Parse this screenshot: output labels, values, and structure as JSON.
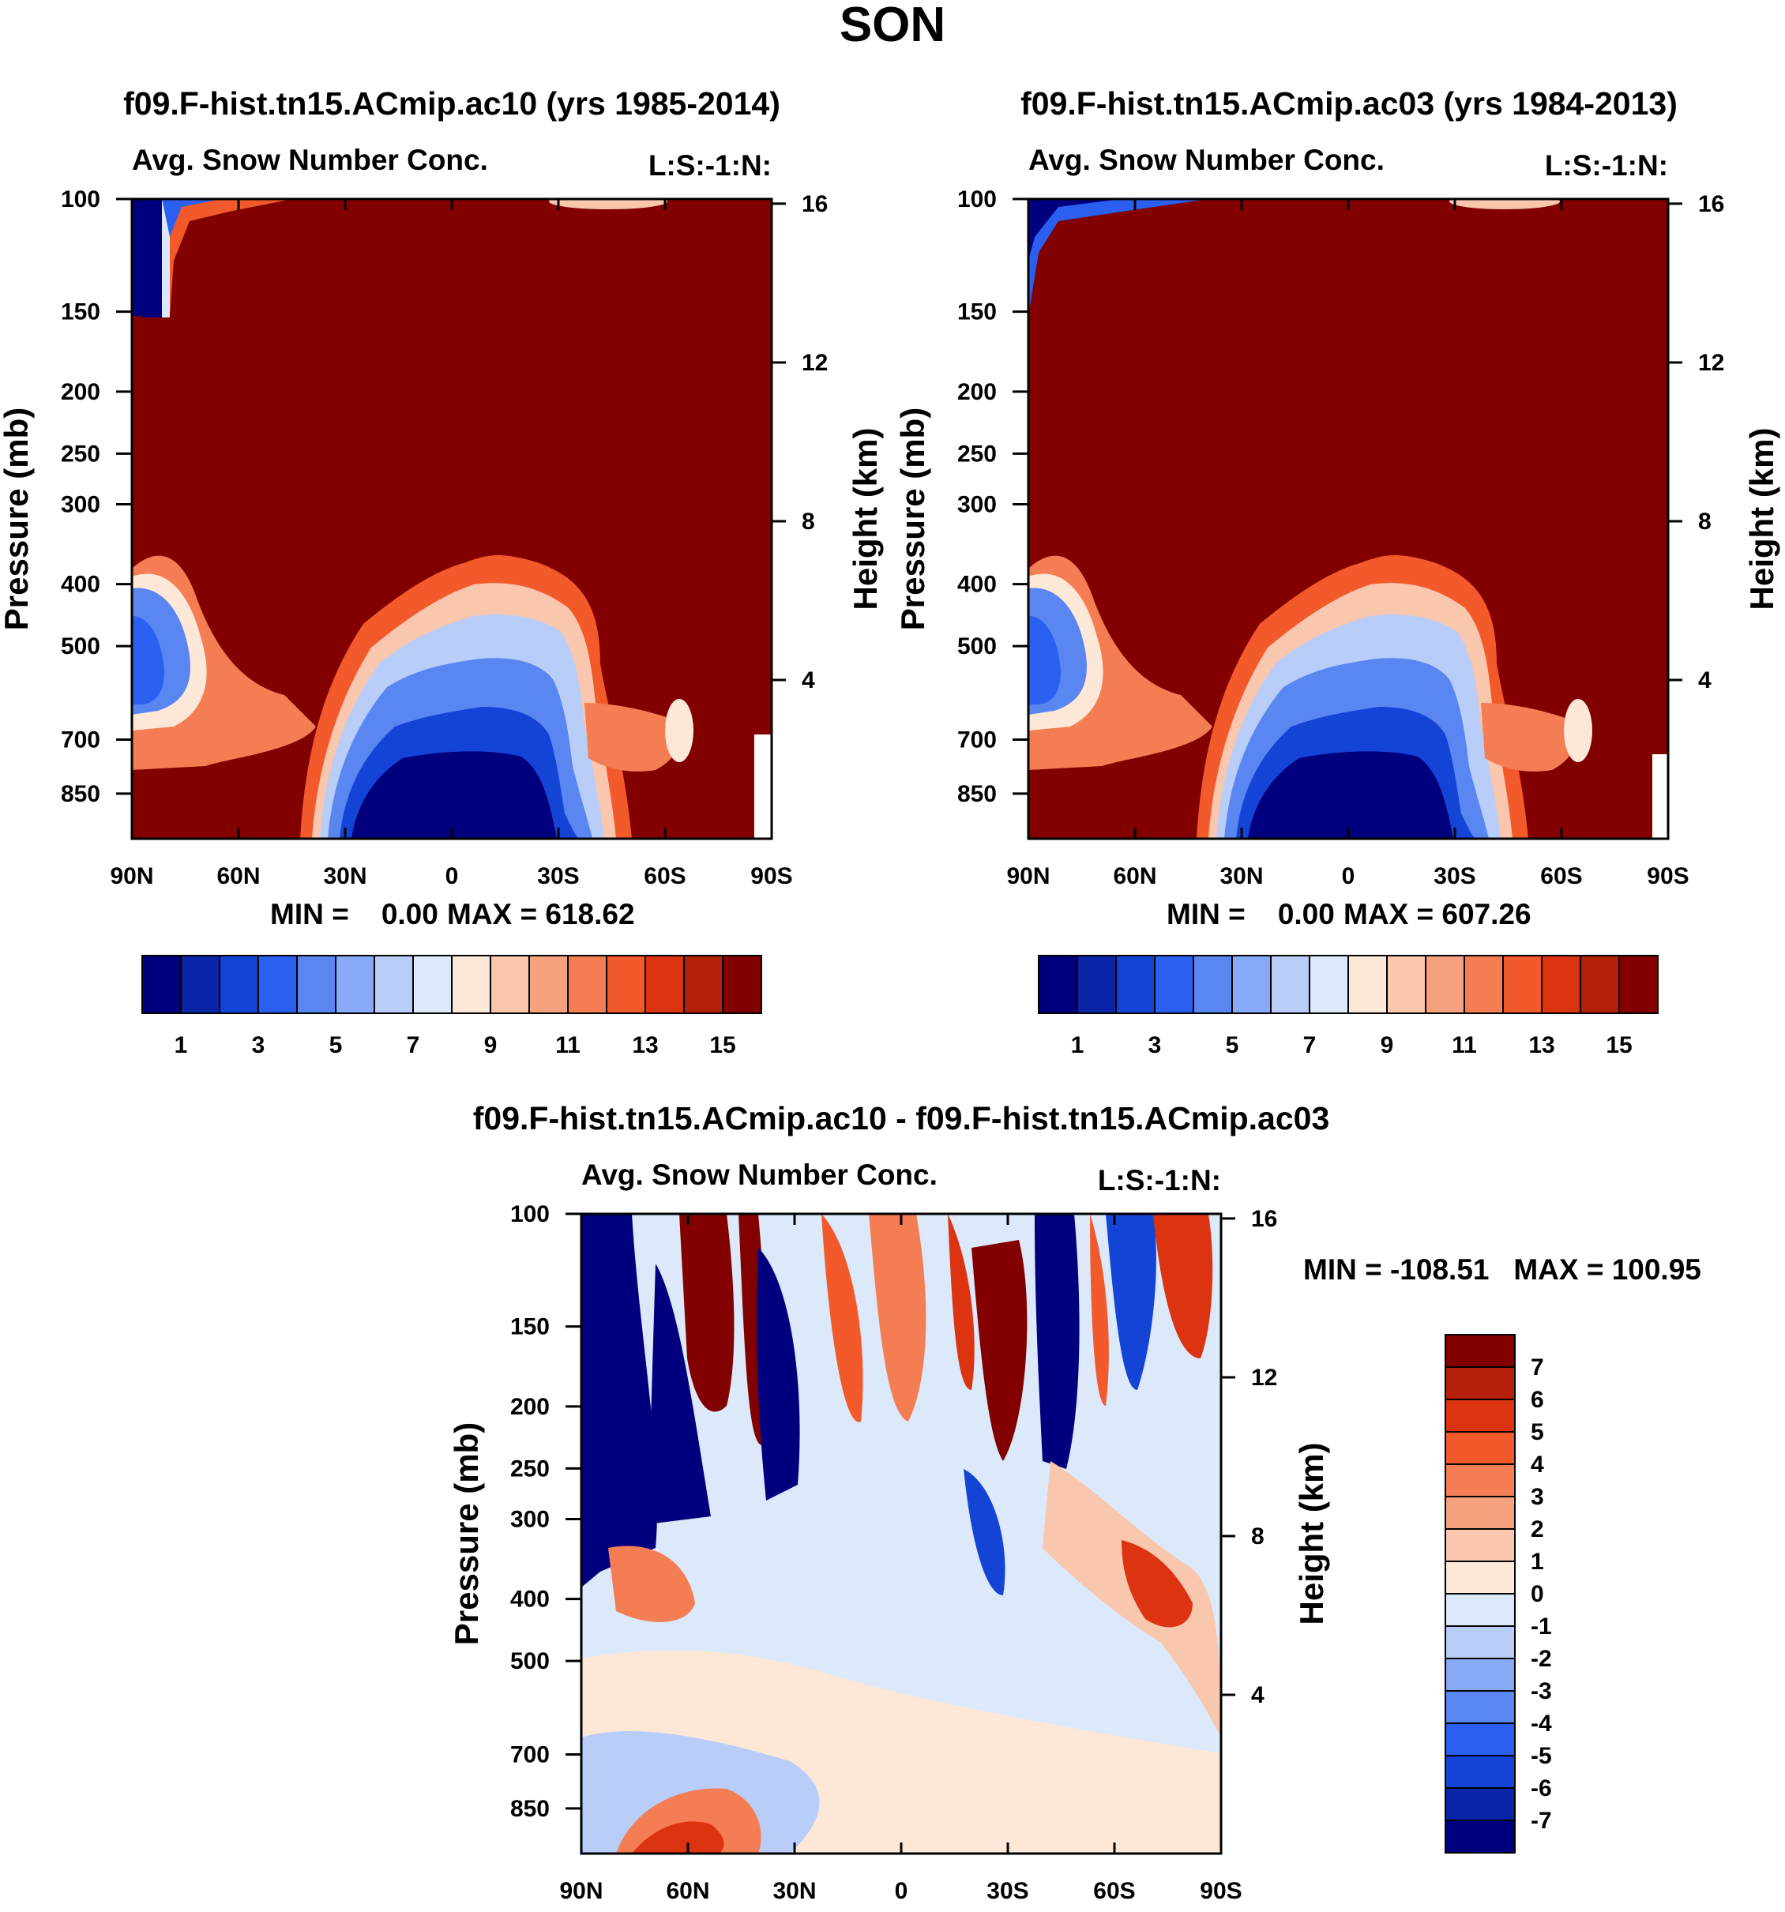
{
  "chart_data": [
    {
      "type": "heatmap",
      "id": "ac10",
      "title": "f09.F-hist.tn15.ACmip.ac10 (yrs 1985-2014)",
      "left_string": "Avg. Snow Number Conc.",
      "right_string": "L:S:-1:N:",
      "ylabel": "Pressure (mb)",
      "ylabel_right": "Height (km)",
      "x_ticks": [
        "90N",
        "60N",
        "30N",
        "0",
        "30S",
        "60S",
        "90S"
      ],
      "y_ticks": [
        "100",
        "150",
        "200",
        "250",
        "300",
        "400",
        "500",
        "700",
        "850"
      ],
      "y_ticks_right": [
        "16",
        "12",
        "8",
        "4"
      ],
      "min_label": "MIN =    0.00",
      "max_label": "MAX = 618.62",
      "colorbar_labels": [
        "1",
        "3",
        "5",
        "7",
        "9",
        "11",
        "13",
        "15"
      ],
      "ylim_mb": [
        1000,
        100
      ]
    },
    {
      "type": "heatmap",
      "id": "ac03",
      "title": "f09.F-hist.tn15.ACmip.ac03 (yrs 1984-2013)",
      "left_string": "Avg. Snow Number Conc.",
      "right_string": "L:S:-1:N:",
      "ylabel": "Pressure (mb)",
      "ylabel_right": "Height (km)",
      "x_ticks": [
        "90N",
        "60N",
        "30N",
        "0",
        "30S",
        "60S",
        "90S"
      ],
      "y_ticks": [
        "100",
        "150",
        "200",
        "250",
        "300",
        "400",
        "500",
        "700",
        "850"
      ],
      "y_ticks_right": [
        "16",
        "12",
        "8",
        "4"
      ],
      "min_label": "MIN =    0.00",
      "max_label": "MAX = 607.26",
      "colorbar_labels": [
        "1",
        "3",
        "5",
        "7",
        "9",
        "11",
        "13",
        "15"
      ],
      "ylim_mb": [
        1000,
        100
      ]
    },
    {
      "type": "heatmap",
      "id": "diff",
      "title": "f09.F-hist.tn15.ACmip.ac10 - f09.F-hist.tn15.ACmip.ac03",
      "left_string": "Avg. Snow Number Conc.",
      "right_string": "L:S:-1:N:",
      "ylabel": "Pressure (mb)",
      "ylabel_right": "Height (km)",
      "x_ticks": [
        "90N",
        "60N",
        "30N",
        "0",
        "30S",
        "60S",
        "90S"
      ],
      "y_ticks": [
        "100",
        "150",
        "200",
        "250",
        "300",
        "400",
        "500",
        "700",
        "850"
      ],
      "y_ticks_right": [
        "16",
        "12",
        "8",
        "4"
      ],
      "minmax_label": "MIN = -108.51   MAX = 100.95",
      "colorbar_labels": [
        "7",
        "6",
        "5",
        "4",
        "3",
        "2",
        "1",
        "0",
        "-1",
        "-2",
        "-3",
        "-4",
        "-5",
        "-6",
        "-7"
      ],
      "ylim_mb": [
        1000,
        100
      ]
    }
  ],
  "suptitle": "SON",
  "colormap": [
    "#00007f",
    "#0a24a8",
    "#1444d6",
    "#2b5ff0",
    "#5a86f2",
    "#88a9f5",
    "#b8cdf8",
    "#dce9fb",
    "#fde8d8",
    "#f9c6ae",
    "#f7a27e",
    "#f57d53",
    "#f25a2c",
    "#dc3310",
    "#b5200a",
    "#820000"
  ]
}
